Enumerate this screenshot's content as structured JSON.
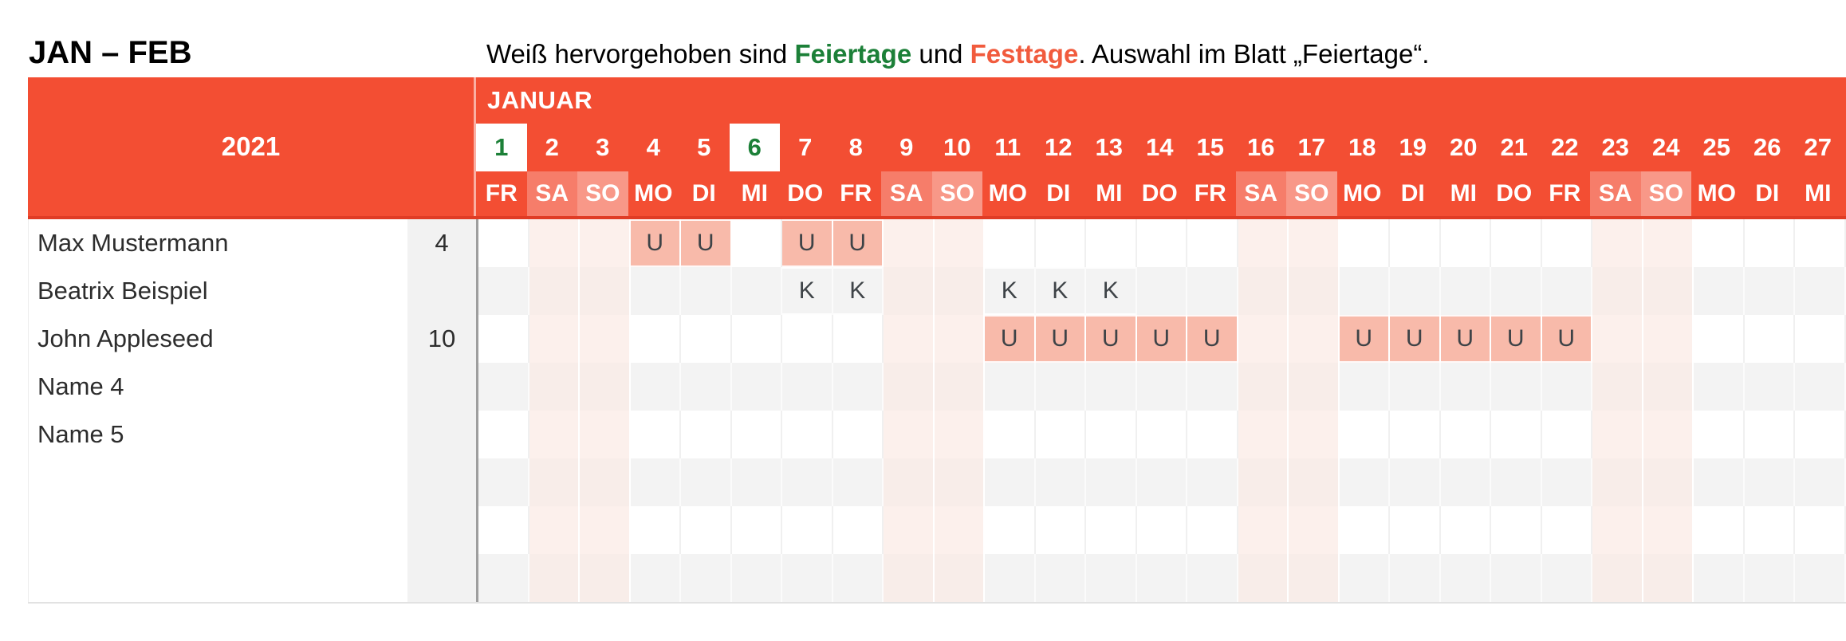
{
  "title": "JAN – FEB",
  "legend": {
    "part1": "Weiß hervorgehoben sind ",
    "feiertage": "Feiertage",
    "part2": " und ",
    "festtage": "Festtage",
    "part3": ". Auswahl im Blatt „Feiertage“."
  },
  "header": {
    "year": "2021",
    "month": "JANUAR"
  },
  "days": [
    {
      "num": "1",
      "wd": "FR",
      "type": "holiday"
    },
    {
      "num": "2",
      "wd": "SA",
      "type": "sat"
    },
    {
      "num": "3",
      "wd": "SO",
      "type": "sun"
    },
    {
      "num": "4",
      "wd": "MO",
      "type": "work"
    },
    {
      "num": "5",
      "wd": "DI",
      "type": "work"
    },
    {
      "num": "6",
      "wd": "MI",
      "type": "holiday"
    },
    {
      "num": "7",
      "wd": "DO",
      "type": "work"
    },
    {
      "num": "8",
      "wd": "FR",
      "type": "work"
    },
    {
      "num": "9",
      "wd": "SA",
      "type": "sat"
    },
    {
      "num": "10",
      "wd": "SO",
      "type": "sun"
    },
    {
      "num": "11",
      "wd": "MO",
      "type": "work"
    },
    {
      "num": "12",
      "wd": "DI",
      "type": "work"
    },
    {
      "num": "13",
      "wd": "MI",
      "type": "work"
    },
    {
      "num": "14",
      "wd": "DO",
      "type": "work"
    },
    {
      "num": "15",
      "wd": "FR",
      "type": "work"
    },
    {
      "num": "16",
      "wd": "SA",
      "type": "sat"
    },
    {
      "num": "17",
      "wd": "SO",
      "type": "sun"
    },
    {
      "num": "18",
      "wd": "MO",
      "type": "work"
    },
    {
      "num": "19",
      "wd": "DI",
      "type": "work"
    },
    {
      "num": "20",
      "wd": "MI",
      "type": "work"
    },
    {
      "num": "21",
      "wd": "DO",
      "type": "work"
    },
    {
      "num": "22",
      "wd": "FR",
      "type": "work"
    },
    {
      "num": "23",
      "wd": "SA",
      "type": "sat"
    },
    {
      "num": "24",
      "wd": "SO",
      "type": "sun"
    },
    {
      "num": "25",
      "wd": "MO",
      "type": "work"
    },
    {
      "num": "26",
      "wd": "DI",
      "type": "work"
    },
    {
      "num": "27",
      "wd": "MI",
      "type": "work"
    }
  ],
  "rows": [
    {
      "name": "Max Mustermann",
      "count": "4",
      "marks": [
        {
          "day": 4,
          "code": "U"
        },
        {
          "day": 5,
          "code": "U"
        },
        {
          "day": 7,
          "code": "U"
        },
        {
          "day": 8,
          "code": "U"
        }
      ]
    },
    {
      "name": "Beatrix Beispiel",
      "count": "",
      "marks": [
        {
          "day": 7,
          "code": "K"
        },
        {
          "day": 8,
          "code": "K"
        },
        {
          "day": 11,
          "code": "K"
        },
        {
          "day": 12,
          "code": "K"
        },
        {
          "day": 13,
          "code": "K"
        }
      ]
    },
    {
      "name": "John Appleseed",
      "count": "10",
      "marks": [
        {
          "day": 11,
          "code": "U"
        },
        {
          "day": 12,
          "code": "U"
        },
        {
          "day": 13,
          "code": "U"
        },
        {
          "day": 14,
          "code": "U"
        },
        {
          "day": 15,
          "code": "U"
        },
        {
          "day": 18,
          "code": "U"
        },
        {
          "day": 19,
          "code": "U"
        },
        {
          "day": 20,
          "code": "U"
        },
        {
          "day": 21,
          "code": "U"
        },
        {
          "day": 22,
          "code": "U"
        }
      ]
    },
    {
      "name": "Name 4",
      "count": "",
      "marks": []
    },
    {
      "name": "Name 5",
      "count": "",
      "marks": []
    },
    {
      "name": "",
      "count": "",
      "marks": []
    },
    {
      "name": "",
      "count": "",
      "marks": []
    },
    {
      "name": "",
      "count": "",
      "marks": []
    }
  ],
  "colors": {
    "header_red": "#F34E33",
    "header_red_dark": "#E03C25",
    "holiday_green": "#1C8038",
    "festtag_red": "#F15B3D",
    "mark_bg": "#F8BAAA",
    "mark_text": "#3E4347",
    "weekend_bg": "#FCF0EC",
    "weekend_bg_gray_row": "#F8EDE9",
    "gray_row": "#F3F3F3",
    "count_col": "#F2F2F2"
  }
}
